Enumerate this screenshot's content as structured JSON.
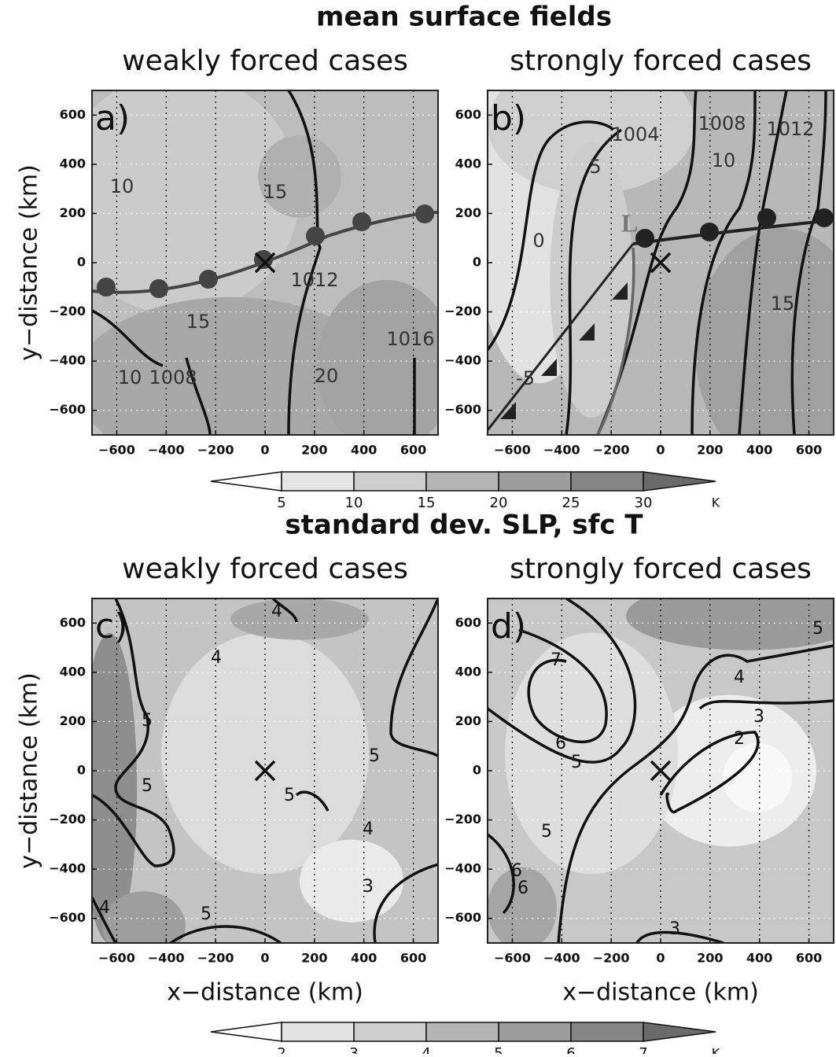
{
  "chart_data": [
    {
      "type": "contour",
      "figure_title": "mean surface fields",
      "title": "weakly forced cases",
      "panel_label": "a)",
      "xlim": [
        -700,
        700
      ],
      "ylim": [
        -700,
        700
      ],
      "xticks": [
        {
          "value": -600,
          "label": "−600"
        },
        {
          "value": -400,
          "label": "−400"
        },
        {
          "value": -200,
          "label": "−200"
        },
        0,
        200,
        400,
        600
      ],
      "yticks": [
        {
          "value": -600,
          "label": "−600"
        },
        {
          "value": -400,
          "label": "−400"
        },
        {
          "value": -200,
          "label": "−200"
        },
        0,
        200,
        400,
        600
      ],
      "y_label": "y−distance (km)",
      "grid": true,
      "contour_labels": [
        10,
        15,
        1012,
        15,
        1016,
        10,
        1008,
        20
      ]
    },
    {
      "type": "contour",
      "title": "strongly forced cases",
      "panel_label": "b)",
      "xlim": [
        -700,
        700
      ],
      "ylim": [
        -700,
        700
      ],
      "xticks": [
        {
          "value": -600,
          "label": "−600"
        },
        {
          "value": -400,
          "label": "−400"
        },
        {
          "value": -200,
          "label": "−200"
        },
        0,
        200,
        400,
        600
      ],
      "yticks": [
        {
          "value": -600,
          "label": "−600"
        },
        {
          "value": -400,
          "label": "−400"
        },
        {
          "value": -200,
          "label": "−200"
        },
        0,
        200,
        400,
        600
      ],
      "grid": true,
      "annotation": "L",
      "contour_labels": [
        1004,
        1008,
        1012,
        5,
        10,
        0,
        15,
        -5
      ]
    },
    {
      "type": "contour",
      "figure_title": "standard dev. SLP, sfc T",
      "title": "weakly forced cases",
      "panel_label": "c)",
      "xlim": [
        -700,
        700
      ],
      "ylim": [
        -700,
        700
      ],
      "xticks": [
        {
          "value": -600,
          "label": "−600"
        },
        {
          "value": -400,
          "label": "−400"
        },
        {
          "value": -200,
          "label": "−200"
        },
        0,
        200,
        400,
        600
      ],
      "yticks": [
        {
          "value": -600,
          "label": "−600"
        },
        {
          "value": -400,
          "label": "−400"
        },
        {
          "value": -200,
          "label": "−200"
        },
        0,
        200,
        400,
        600
      ],
      "x_label": "x−distance (km)",
      "y_label": "y−distance (km)",
      "grid": true,
      "contour_labels": [
        4,
        4,
        5,
        5,
        5,
        5,
        4,
        3,
        5,
        4
      ]
    },
    {
      "type": "contour",
      "title": "strongly forced cases",
      "panel_label": "d)",
      "xlim": [
        -700,
        700
      ],
      "ylim": [
        -700,
        700
      ],
      "xticks": [
        {
          "value": -600,
          "label": "−600"
        },
        {
          "value": -400,
          "label": "−400"
        },
        {
          "value": -200,
          "label": "−200"
        },
        0,
        200,
        400,
        600
      ],
      "yticks": [
        {
          "value": -600,
          "label": "−600"
        },
        {
          "value": -400,
          "label": "−400"
        },
        {
          "value": -200,
          "label": "−200"
        },
        0,
        200,
        400,
        600
      ],
      "x_label": "x−distance (km)",
      "grid": true,
      "contour_labels": [
        5,
        7,
        4,
        3,
        2,
        6,
        5,
        5,
        6,
        6,
        3
      ]
    }
  ],
  "colorbars": [
    {
      "ticks": [
        5,
        10,
        15,
        20,
        25,
        30
      ],
      "unit": "K",
      "colors": [
        "#ffffff",
        "#e4e4e4",
        "#cdcdcd",
        "#b5b5b5",
        "#9d9d9d",
        "#858585",
        "#6a6a6a"
      ]
    },
    {
      "ticks": [
        2,
        3,
        4,
        5,
        6,
        7
      ],
      "unit": "K",
      "colors": [
        "#ffffff",
        "#e4e4e4",
        "#cdcdcd",
        "#b5b5b5",
        "#9d9d9d",
        "#858585",
        "#6a6a6a"
      ]
    }
  ]
}
